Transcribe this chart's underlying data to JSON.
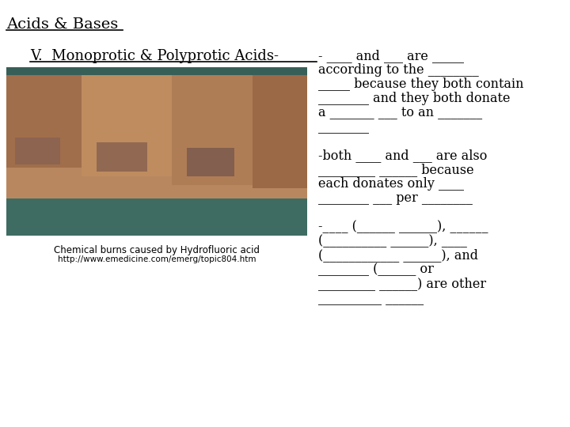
{
  "title": "Acids & Bases",
  "subtitle": "V.  Monoprotic & Polyprotic Acids-",
  "bg_color": "#ffffff",
  "text_color": "#000000",
  "title_fontsize": 14,
  "subtitle_fontsize": 13,
  "body_fontsize": 11.5,
  "caption_fontsize": 8.5,
  "right_text_lines": [
    "____ and ___ are _____",
    "according to the ________",
    "_____ because they both contain",
    "________ and they both donate",
    "a _______ ___ to an _______",
    "________",
    "",
    "-both ____ and ___ are also",
    "_________ ______ because",
    "each donates only ____",
    "________ ___ per ________",
    "",
    "-____ (______ ______), ______",
    "(__________ ______), ____",
    "(____________ ______), and",
    "________ (______ or",
    "_________ ______) are other",
    "__________ ______"
  ],
  "caption_line1": "Chemical burns caused by Hydrofluoric acid",
  "caption_line2": "http://www.emedicine.com/emerg/topic804.htm"
}
